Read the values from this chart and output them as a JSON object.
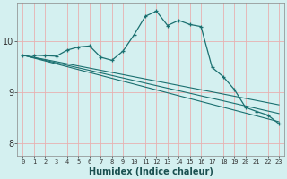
{
  "xlabel": "Humidex (Indice chaleur)",
  "bg_color": "#d4f0f0",
  "line_color": "#1a7070",
  "grid_color": "#e8b0b0",
  "x_ticks": [
    0,
    1,
    2,
    3,
    4,
    5,
    6,
    7,
    8,
    9,
    10,
    11,
    12,
    13,
    14,
    15,
    16,
    17,
    18,
    19,
    20,
    21,
    22,
    23
  ],
  "y_ticks": [
    8,
    9,
    10
  ],
  "xlim": [
    -0.5,
    23.5
  ],
  "ylim": [
    7.75,
    10.75
  ],
  "line1_x": [
    0,
    1,
    2,
    3,
    4,
    5,
    6,
    7,
    8,
    9,
    10,
    11,
    12,
    13,
    14,
    15,
    16,
    17,
    18,
    19,
    20,
    21,
    22,
    23
  ],
  "line1_y": [
    9.72,
    9.72,
    9.71,
    9.7,
    9.82,
    9.88,
    9.9,
    9.68,
    9.62,
    9.8,
    10.12,
    10.48,
    10.58,
    10.3,
    10.4,
    10.32,
    10.28,
    9.48,
    9.3,
    9.05,
    8.7,
    8.62,
    8.55,
    8.38
  ],
  "line2_x": [
    0,
    23
  ],
  "line2_y": [
    9.72,
    8.75
  ],
  "line3_x": [
    0,
    23
  ],
  "line3_y": [
    9.72,
    8.58
  ],
  "line4_x": [
    0,
    23
  ],
  "line4_y": [
    9.72,
    8.42
  ],
  "spine_color": "#888888"
}
